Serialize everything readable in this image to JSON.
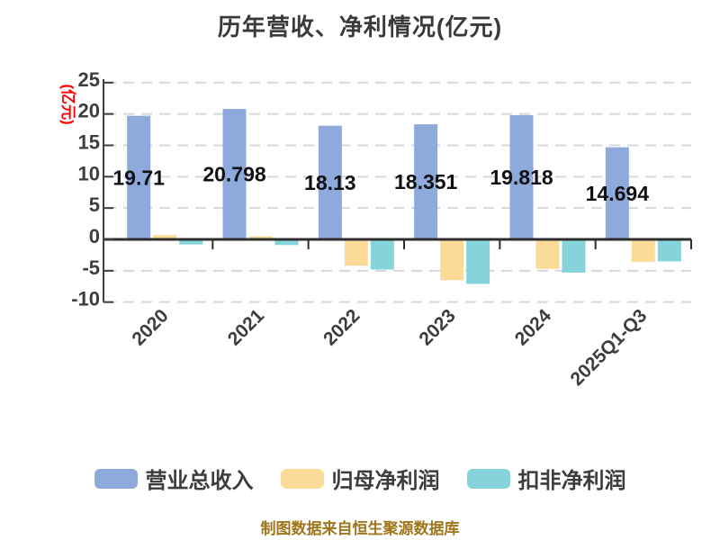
{
  "title": "历年营收、净利情况(亿元)",
  "footer": "制图数据来自恒生聚源数据库",
  "colors": {
    "background": "#ffffff",
    "title": "#3a3a3a",
    "axis": "#3f3f3f",
    "zero_line": "#2e2e2e",
    "grid": "#d8d8d8",
    "tick_label": "#3d3d3d",
    "data_label": "#111111",
    "ylabel": "#ff0000",
    "footer": "#a0761b",
    "series_blue": "#8ea9db",
    "series_orange": "#fcdb99",
    "series_cyan": "#86d4db"
  },
  "chart_data": {
    "type": "bar",
    "title": "历年营收、净利情况(亿元)",
    "xlabel": "",
    "ylabel": "(亿元)",
    "ylim": [
      -10,
      25
    ],
    "yticks": [
      25,
      20,
      15,
      10,
      5,
      0,
      -5,
      -10
    ],
    "grid": true,
    "grid_style": "dashed",
    "legend_position": "bottom",
    "x_label_rotation": -45,
    "categories": [
      "2020",
      "2021",
      "2022",
      "2023",
      "2024",
      "2025Q1-Q3"
    ],
    "series": [
      {
        "name": "营业总收入",
        "color": "#8ea9db",
        "values": [
          19.71,
          20.798,
          18.13,
          18.351,
          19.818,
          14.694
        ],
        "labels": [
          "19.71",
          "20.798",
          "18.13",
          "18.351",
          "19.818",
          "14.694"
        ]
      },
      {
        "name": "归母净利润",
        "color": "#fcdb99",
        "values": [
          0.7,
          0.5,
          -4.2,
          -6.5,
          -4.7,
          -3.6
        ]
      },
      {
        "name": "扣非净利润",
        "color": "#86d4db",
        "values": [
          -0.8,
          -0.9,
          -4.8,
          -7.1,
          -5.3,
          -3.5
        ]
      }
    ]
  }
}
